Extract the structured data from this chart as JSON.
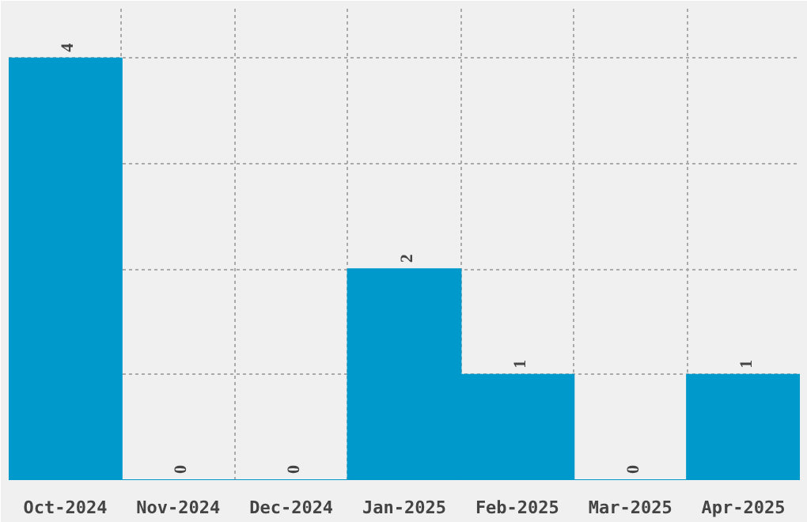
{
  "chart_data": {
    "type": "bar",
    "categories": [
      "Oct-2024",
      "Nov-2024",
      "Dec-2024",
      "Jan-2025",
      "Feb-2025",
      "Mar-2025",
      "Apr-2025"
    ],
    "values": [
      4,
      0,
      0,
      2,
      1,
      0,
      1
    ],
    "color": "#0099cc",
    "data_labels": true,
    "grid": true,
    "tick_labels": "x",
    "ylim": [
      0,
      4.47
    ]
  }
}
